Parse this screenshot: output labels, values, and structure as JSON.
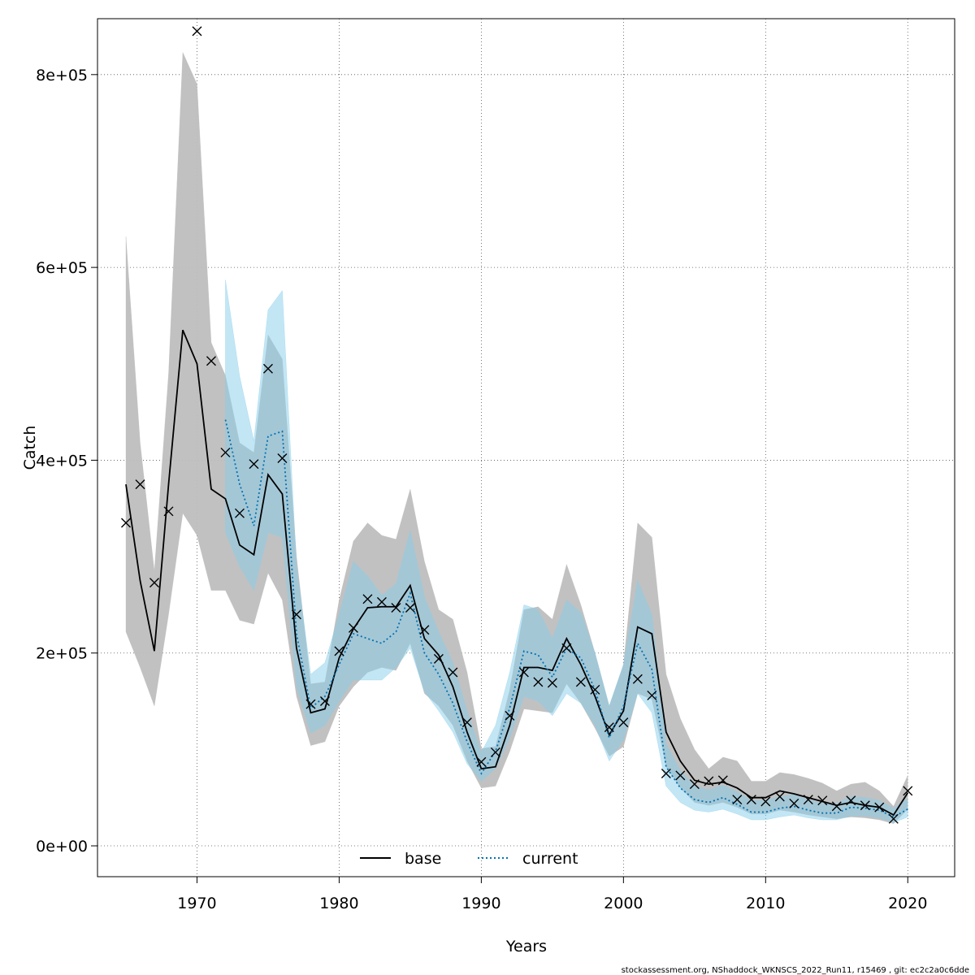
{
  "chart_data": {
    "type": "line",
    "xlabel": "Years",
    "ylabel": "Catch",
    "xlim": [
      1963,
      2023.3
    ],
    "ylim": [
      -32000,
      858000
    ],
    "x_ticks": [
      1970,
      1980,
      1990,
      2000,
      2010,
      2020
    ],
    "x_tick_labels": [
      "1970",
      "1980",
      "1990",
      "2000",
      "2010",
      "2020"
    ],
    "y_ticks": [
      0,
      200000,
      400000,
      600000,
      800000
    ],
    "y_tick_labels": [
      "0e+00",
      "2e+05",
      "4e+05",
      "6e+05",
      "8e+05"
    ],
    "grid": true,
    "legend_position": "bottom-center",
    "legend": [
      {
        "label": "base",
        "style": "solid",
        "color": "#000000"
      },
      {
        "label": "current",
        "style": "dotted",
        "color": "#0072B2"
      }
    ],
    "series": [
      {
        "name": "base",
        "color": "#000000",
        "band_color": "#bebebe",
        "x": [
          1965,
          1966,
          1967,
          1968,
          1969,
          1970,
          1971,
          1972,
          1973,
          1974,
          1975,
          1976,
          1977,
          1978,
          1979,
          1980,
          1981,
          1982,
          1983,
          1984,
          1985,
          1986,
          1987,
          1988,
          1989,
          1990,
          1991,
          1992,
          1993,
          1994,
          1995,
          1996,
          1997,
          1998,
          1999,
          2000,
          2001,
          2002,
          2003,
          2004,
          2005,
          2006,
          2007,
          2008,
          2009,
          2010,
          2011,
          2012,
          2013,
          2014,
          2015,
          2016,
          2017,
          2018,
          2019,
          2020
        ],
        "y": [
          375000,
          275000,
          202000,
          375000,
          535000,
          500000,
          370000,
          360000,
          312000,
          302000,
          385000,
          365000,
          205000,
          138000,
          142000,
          195000,
          225000,
          247000,
          248000,
          248000,
          270000,
          215000,
          198000,
          165000,
          118000,
          80000,
          82000,
          125000,
          185000,
          185000,
          182000,
          215000,
          188000,
          155000,
          115000,
          140000,
          227000,
          220000,
          118000,
          88000,
          68000,
          64000,
          66000,
          60000,
          50000,
          50000,
          57000,
          54000,
          50000,
          46000,
          42000,
          45000,
          42000,
          40000,
          32000,
          55000
        ],
        "lower": [
          222000,
          185000,
          145000,
          240000,
          345000,
          322000,
          265000,
          265000,
          234000,
          230000,
          283000,
          255000,
          155000,
          104000,
          108000,
          145000,
          165000,
          180000,
          185000,
          182000,
          210000,
          158000,
          145000,
          125000,
          88000,
          60000,
          62000,
          98000,
          142000,
          140000,
          138000,
          168000,
          148000,
          122000,
          93000,
          103000,
          158000,
          152000,
          82000,
          60000,
          45000,
          42000,
          45000,
          40000,
          33000,
          33000,
          37000,
          35000,
          32000,
          30000,
          28000,
          30000,
          29000,
          27000,
          23000,
          38000
        ],
        "upper": [
          632000,
          418000,
          285000,
          490000,
          823000,
          790000,
          522000,
          488000,
          418000,
          408000,
          530000,
          505000,
          300000,
          168000,
          170000,
          255000,
          316000,
          335000,
          322000,
          318000,
          370000,
          295000,
          245000,
          235000,
          180000,
          101000,
          103000,
          162000,
          245000,
          248000,
          235000,
          292000,
          250000,
          200000,
          145000,
          188000,
          335000,
          320000,
          178000,
          132000,
          100000,
          80000,
          92000,
          88000,
          67000,
          67000,
          76000,
          74000,
          70000,
          65000,
          57000,
          64000,
          66000,
          57000,
          41000,
          73000
        ]
      },
      {
        "name": "current",
        "color": "#0072B2",
        "band_color": "#87ceeb",
        "x": [
          1972,
          1973,
          1974,
          1975,
          1976,
          1977,
          1978,
          1979,
          1980,
          1981,
          1982,
          1983,
          1984,
          1985,
          1986,
          1987,
          1988,
          1989,
          1990,
          1991,
          1992,
          1993,
          1994,
          1995,
          1996,
          1997,
          1998,
          1999,
          2000,
          2001,
          2002,
          2003,
          2004,
          2005,
          2006,
          2007,
          2008,
          2009,
          2010,
          2011,
          2012,
          2013,
          2014,
          2015,
          2016,
          2017,
          2018,
          2019,
          2020
        ],
        "y": [
          442000,
          375000,
          332000,
          425000,
          430000,
          220000,
          143000,
          155000,
          188000,
          220000,
          215000,
          210000,
          222000,
          262000,
          200000,
          178000,
          148000,
          108000,
          75000,
          98000,
          143000,
          202000,
          198000,
          175000,
          205000,
          195000,
          162000,
          112000,
          145000,
          210000,
          183000,
          82000,
          60000,
          48000,
          45000,
          50000,
          43000,
          35000,
          35000,
          39000,
          41000,
          37000,
          34000,
          34000,
          40000,
          39000,
          37000,
          30000,
          38000
        ],
        "lower": [
          325000,
          290000,
          265000,
          325000,
          320000,
          165000,
          117000,
          125000,
          150000,
          172000,
          172000,
          172000,
          185000,
          205000,
          160000,
          140000,
          118000,
          85000,
          67000,
          80000,
          112000,
          155000,
          150000,
          135000,
          158000,
          148000,
          125000,
          88000,
          110000,
          158000,
          138000,
          62000,
          45000,
          37000,
          35000,
          38000,
          33000,
          27000,
          27000,
          30000,
          32000,
          29000,
          27000,
          27000,
          31000,
          31000,
          29000,
          24000,
          30000
        ],
        "upper": [
          587000,
          487000,
          420000,
          556000,
          576000,
          290000,
          178000,
          190000,
          240000,
          295000,
          280000,
          260000,
          272000,
          327000,
          258000,
          222000,
          190000,
          140000,
          97000,
          125000,
          180000,
          250000,
          245000,
          215000,
          255000,
          242000,
          200000,
          145000,
          188000,
          275000,
          240000,
          106000,
          78000,
          62000,
          58000,
          63000,
          56000,
          47000,
          47000,
          51000,
          53000,
          48000,
          44000,
          44000,
          51000,
          50000,
          47000,
          39000,
          49000
        ]
      }
    ],
    "observed": {
      "x": [
        1965,
        1966,
        1967,
        1968,
        1970,
        1971,
        1972,
        1973,
        1974,
        1975,
        1976,
        1977,
        1978,
        1979,
        1980,
        1981,
        1982,
        1983,
        1984,
        1985,
        1986,
        1987,
        1988,
        1989,
        1990,
        1991,
        1992,
        1993,
        1994,
        1995,
        1996,
        1997,
        1998,
        1999,
        2000,
        2001,
        2002,
        2003,
        2004,
        2005,
        2006,
        2007,
        2008,
        2009,
        2010,
        2011,
        2012,
        2013,
        2014,
        2015,
        2016,
        2017,
        2018,
        2019,
        2020
      ],
      "y": [
        335000,
        375000,
        273000,
        347000,
        845000,
        503000,
        408000,
        345000,
        396000,
        495000,
        402000,
        240000,
        147000,
        150000,
        202000,
        226000,
        256000,
        253000,
        247000,
        247000,
        224000,
        194000,
        180000,
        128000,
        87000,
        97000,
        135000,
        180000,
        170000,
        169000,
        205000,
        170000,
        162000,
        123000,
        128000,
        173000,
        156000,
        75000,
        73000,
        64000,
        67000,
        68000,
        48000,
        48000,
        46000,
        51000,
        44000,
        48000,
        47000,
        41000,
        47000,
        42000,
        40000,
        28000,
        57000
      ]
    }
  },
  "footer_text": "stockassessment.org, NShaddock_WKNSCS_2022_Run11, r15469 , git: ec2c2a0c6dde"
}
